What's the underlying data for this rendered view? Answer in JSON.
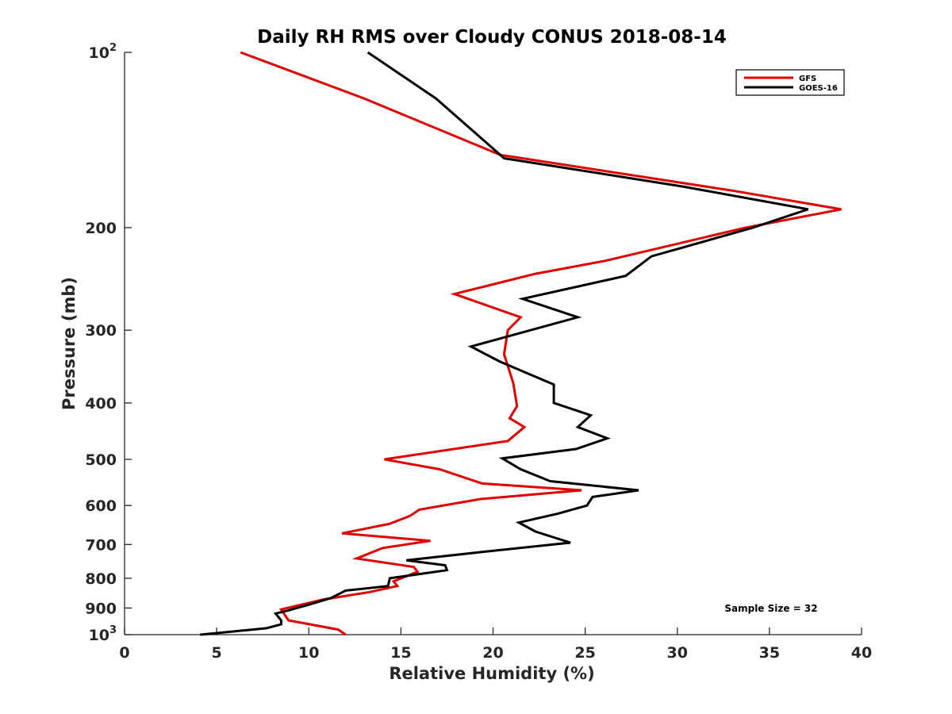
{
  "chart_data": {
    "type": "line",
    "title": "Daily RH RMS over Cloudy CONUS 2018-08-14",
    "xlabel": "Relative Humidity (%)",
    "ylabel": "Pressure (mb)",
    "xlim": [
      0,
      40
    ],
    "ylim": [
      100,
      1000
    ],
    "y_scale": "log",
    "y_reversed": true,
    "grid": false,
    "legend_location": "top-right",
    "x_ticks": [
      0,
      5,
      10,
      15,
      20,
      25,
      30,
      35,
      40
    ],
    "y_ticks": [
      {
        "value": 100,
        "label": "10",
        "sup": "2"
      },
      {
        "value": 200,
        "label": "200"
      },
      {
        "value": 300,
        "label": "300"
      },
      {
        "value": 400,
        "label": "400"
      },
      {
        "value": 500,
        "label": "500"
      },
      {
        "value": 600,
        "label": "600"
      },
      {
        "value": 700,
        "label": "700"
      },
      {
        "value": 800,
        "label": "800"
      },
      {
        "value": 900,
        "label": "900"
      },
      {
        "value": 1000,
        "label": "10",
        "sup": "3"
      }
    ],
    "series": [
      {
        "name": "GFS",
        "color": "#e00000",
        "points": [
          {
            "x": 6.3,
            "y": 100
          },
          {
            "x": 13.0,
            "y": 120
          },
          {
            "x": 20.4,
            "y": 150
          },
          {
            "x": 33.1,
            "y": 173
          },
          {
            "x": 38.9,
            "y": 186
          },
          {
            "x": 33.7,
            "y": 200
          },
          {
            "x": 26.1,
            "y": 228
          },
          {
            "x": 22.3,
            "y": 240
          },
          {
            "x": 17.9,
            "y": 260
          },
          {
            "x": 21.5,
            "y": 285
          },
          {
            "x": 20.8,
            "y": 300
          },
          {
            "x": 20.6,
            "y": 330
          },
          {
            "x": 21.1,
            "y": 370
          },
          {
            "x": 21.3,
            "y": 405
          },
          {
            "x": 20.9,
            "y": 425
          },
          {
            "x": 21.7,
            "y": 440
          },
          {
            "x": 20.8,
            "y": 465
          },
          {
            "x": 14.1,
            "y": 500
          },
          {
            "x": 17.1,
            "y": 520
          },
          {
            "x": 19.4,
            "y": 550
          },
          {
            "x": 24.8,
            "y": 565
          },
          {
            "x": 19.3,
            "y": 585
          },
          {
            "x": 16.0,
            "y": 610
          },
          {
            "x": 15.5,
            "y": 625
          },
          {
            "x": 14.4,
            "y": 645
          },
          {
            "x": 11.8,
            "y": 670
          },
          {
            "x": 16.6,
            "y": 690
          },
          {
            "x": 14.0,
            "y": 710
          },
          {
            "x": 12.6,
            "y": 740
          },
          {
            "x": 15.7,
            "y": 765
          },
          {
            "x": 15.9,
            "y": 780
          },
          {
            "x": 14.6,
            "y": 810
          },
          {
            "x": 14.8,
            "y": 825
          },
          {
            "x": 13.3,
            "y": 845
          },
          {
            "x": 10.8,
            "y": 870
          },
          {
            "x": 8.5,
            "y": 905
          },
          {
            "x": 8.9,
            "y": 945
          },
          {
            "x": 11.6,
            "y": 980
          },
          {
            "x": 12.0,
            "y": 1000
          }
        ]
      },
      {
        "name": "GOES-16",
        "color": "#000000",
        "points": [
          {
            "x": 13.2,
            "y": 100
          },
          {
            "x": 16.9,
            "y": 120
          },
          {
            "x": 20.6,
            "y": 152
          },
          {
            "x": 30.3,
            "y": 170
          },
          {
            "x": 37.1,
            "y": 186
          },
          {
            "x": 34.1,
            "y": 200
          },
          {
            "x": 28.6,
            "y": 224
          },
          {
            "x": 27.2,
            "y": 242
          },
          {
            "x": 21.6,
            "y": 265
          },
          {
            "x": 24.6,
            "y": 285
          },
          {
            "x": 18.8,
            "y": 320
          },
          {
            "x": 20.4,
            "y": 340
          },
          {
            "x": 23.3,
            "y": 372
          },
          {
            "x": 23.3,
            "y": 400
          },
          {
            "x": 25.3,
            "y": 420
          },
          {
            "x": 24.6,
            "y": 440
          },
          {
            "x": 26.2,
            "y": 460
          },
          {
            "x": 24.5,
            "y": 480
          },
          {
            "x": 20.5,
            "y": 498
          },
          {
            "x": 21.5,
            "y": 520
          },
          {
            "x": 23.1,
            "y": 545
          },
          {
            "x": 27.9,
            "y": 565
          },
          {
            "x": 25.4,
            "y": 580
          },
          {
            "x": 25.1,
            "y": 600
          },
          {
            "x": 23.5,
            "y": 620
          },
          {
            "x": 21.4,
            "y": 642
          },
          {
            "x": 22.3,
            "y": 665
          },
          {
            "x": 24.2,
            "y": 695
          },
          {
            "x": 19.6,
            "y": 720
          },
          {
            "x": 15.3,
            "y": 745
          },
          {
            "x": 17.4,
            "y": 760
          },
          {
            "x": 17.5,
            "y": 775
          },
          {
            "x": 14.4,
            "y": 800
          },
          {
            "x": 14.3,
            "y": 825
          },
          {
            "x": 12.0,
            "y": 840
          },
          {
            "x": 11.2,
            "y": 865
          },
          {
            "x": 9.9,
            "y": 890
          },
          {
            "x": 8.8,
            "y": 910
          },
          {
            "x": 8.2,
            "y": 920
          },
          {
            "x": 8.5,
            "y": 945
          },
          {
            "x": 8.5,
            "y": 960
          },
          {
            "x": 7.7,
            "y": 975
          },
          {
            "x": 4.1,
            "y": 1000
          }
        ]
      }
    ],
    "annotations": [
      {
        "text": "Sample Size = 32"
      }
    ]
  }
}
